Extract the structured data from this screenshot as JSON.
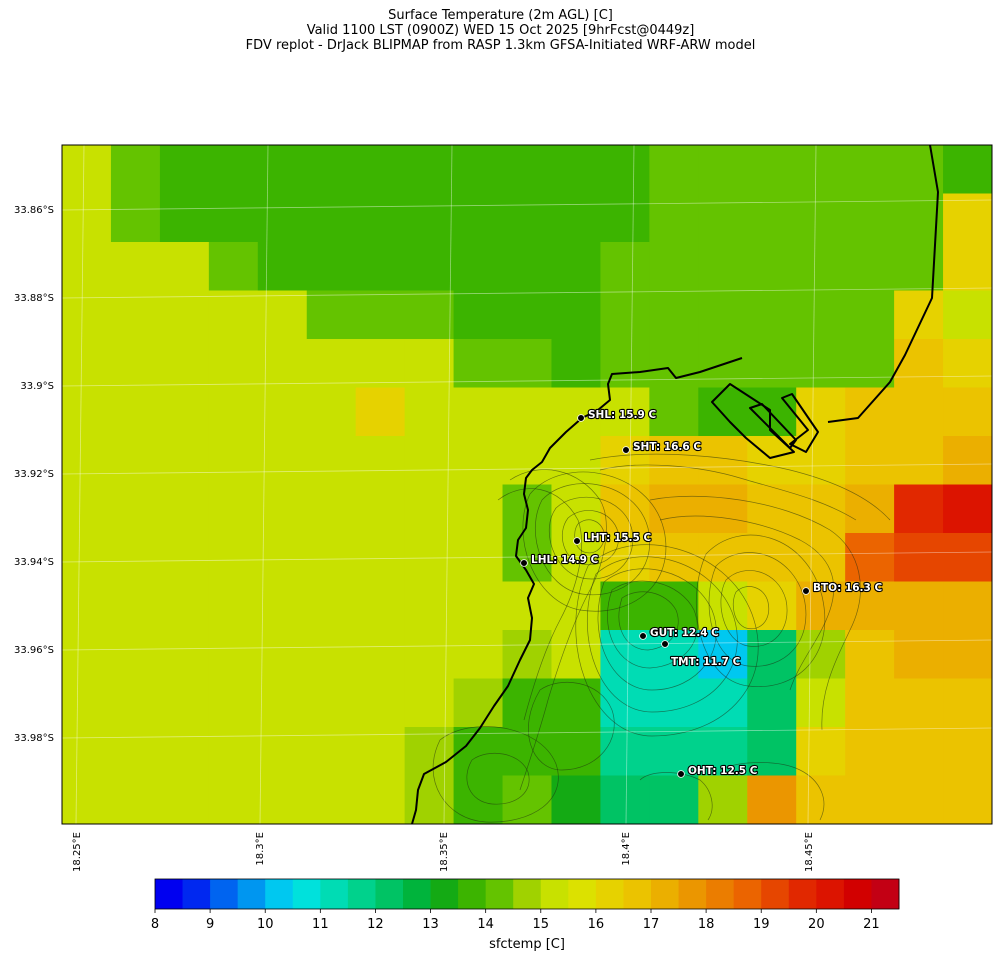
{
  "title": {
    "line1": "Surface Temperature (2m AGL) [C]",
    "line2": "Valid 1100 LST (0900Z) WED 15 Oct 2025 [9hrFcst@0449z]",
    "line3": "FDV replot - DrJack BLIPMAP from RASP 1.3km GFSA-Initiated WRF-ARW model"
  },
  "latitude_labels": [
    "33.86°S",
    "33.88°S",
    "33.9°S",
    "33.92°S",
    "33.94°S",
    "33.96°S",
    "33.98°S"
  ],
  "longitude_labels": [
    "18.25°E",
    "18.3°E",
    "18.35°E",
    "18.4°E",
    "18.45°E"
  ],
  "stations": [
    {
      "id": "SHL",
      "label": "SHL: 15.9 C",
      "temp_c": 15.9
    },
    {
      "id": "SHT",
      "label": "SHT: 16.6 C",
      "temp_c": 16.6
    },
    {
      "id": "LHT",
      "label": "LHT: 15.5 C",
      "temp_c": 15.5
    },
    {
      "id": "LHL",
      "label": "LHL: 14.9 C",
      "temp_c": 14.9
    },
    {
      "id": "BTO",
      "label": "BTO: 16.3 C",
      "temp_c": 16.3
    },
    {
      "id": "GUT",
      "label": "GUT: 12.4 C",
      "temp_c": 12.4
    },
    {
      "id": "TMT",
      "label": "TMT: 11.7 C",
      "temp_c": 11.7
    },
    {
      "id": "OHT",
      "label": "OHT: 12.5 C",
      "temp_c": 12.5
    }
  ],
  "colorbar": {
    "title": "sfctemp [C]",
    "min": 8,
    "max": 21.5,
    "step": 0.5,
    "tick_labels": [
      "8",
      "9",
      "10",
      "11",
      "12",
      "13",
      "14",
      "15",
      "16",
      "17",
      "18",
      "19",
      "20",
      "21"
    ],
    "colors": [
      "#0000f0",
      "#0028f0",
      "#0064f0",
      "#0096f0",
      "#00c8f0",
      "#00e1dc",
      "#00dcb4",
      "#00d28c",
      "#00c364",
      "#00b43c",
      "#14aa14",
      "#3cb400",
      "#64c300",
      "#a0d200",
      "#c8e100",
      "#dce100",
      "#e6d200",
      "#ebc300",
      "#ebaf00",
      "#eb9600",
      "#eb7d00",
      "#eb6400",
      "#e64600",
      "#e12800",
      "#dc1400",
      "#d20000",
      "#c30014"
    ]
  },
  "chart_data": {
    "type": "heatmap",
    "title": "Surface Temperature (2m AGL) [C]",
    "variable": "sfctemp [C]",
    "lon_range": [
      18.247,
      18.497
    ],
    "lat_range": [
      -33.998,
      -33.845
    ],
    "grid_values_c": [
      [
        15.4,
        14.2,
        13.6,
        13.6,
        13.6,
        13.6,
        13.6,
        13.6,
        13.6,
        13.6,
        13.6,
        13.6,
        14.2,
        14.2,
        14.2,
        14.2,
        14.2,
        14.2,
        13.6
      ],
      [
        15.4,
        14.2,
        13.6,
        13.6,
        13.6,
        13.6,
        13.6,
        13.6,
        13.6,
        13.6,
        13.6,
        13.6,
        14.2,
        14.2,
        14.2,
        14.2,
        14.2,
        14.2,
        16.2
      ],
      [
        15.4,
        15.4,
        15.4,
        14.2,
        13.6,
        13.6,
        13.6,
        13.6,
        13.6,
        13.6,
        13.6,
        14.2,
        14.2,
        14.2,
        14.2,
        14.2,
        14.2,
        14.2,
        16.2
      ],
      [
        15.4,
        15.4,
        15.4,
        15.4,
        15.4,
        14.2,
        14.2,
        14.2,
        13.6,
        13.6,
        13.6,
        14.2,
        14.2,
        14.2,
        14.2,
        14.2,
        14.2,
        16.2,
        15.4
      ],
      [
        15.4,
        15.4,
        15.4,
        15.4,
        15.4,
        15.4,
        15.4,
        15.4,
        14.2,
        14.2,
        13.6,
        14.2,
        14.2,
        14.2,
        14.2,
        14.2,
        14.2,
        16.8,
        16.2
      ],
      [
        15.4,
        15.4,
        15.4,
        15.4,
        15.4,
        15.4,
        16.2,
        15.4,
        15.4,
        15.4,
        15.4,
        15.4,
        14.2,
        13.6,
        13.6,
        16.2,
        16.8,
        16.8,
        16.8
      ],
      [
        15.4,
        15.4,
        15.4,
        15.4,
        15.4,
        15.4,
        15.4,
        15.4,
        15.4,
        15.4,
        15.4,
        16.2,
        16.8,
        16.8,
        16.2,
        16.2,
        16.8,
        16.8,
        17.4
      ],
      [
        15.4,
        15.4,
        15.4,
        15.4,
        15.4,
        15.4,
        15.4,
        15.4,
        15.4,
        14.2,
        15.4,
        16.8,
        17.4,
        17.4,
        16.8,
        16.8,
        17.4,
        19.6,
        20.4
      ],
      [
        15.4,
        15.4,
        15.4,
        15.4,
        15.4,
        15.4,
        15.4,
        15.4,
        15.4,
        14.2,
        15.4,
        16.2,
        16.8,
        16.8,
        16.8,
        16.8,
        18.8,
        19.2,
        19.2
      ],
      [
        15.4,
        15.4,
        15.4,
        15.4,
        15.4,
        15.4,
        15.4,
        15.4,
        15.4,
        15.4,
        15.4,
        13.6,
        13.6,
        15.4,
        16.2,
        17.4,
        17.4,
        17.4,
        17.4
      ],
      [
        15.4,
        15.4,
        15.4,
        15.4,
        15.4,
        15.4,
        15.4,
        15.4,
        15.4,
        14.6,
        15.4,
        11.2,
        11.2,
        10.2,
        12.2,
        14.6,
        16.8,
        17.4,
        17.4
      ],
      [
        15.4,
        15.4,
        15.4,
        15.4,
        15.4,
        15.4,
        15.4,
        15.4,
        14.6,
        13.6,
        13.6,
        11.2,
        11.2,
        11.2,
        12.2,
        15.4,
        16.8,
        16.8,
        16.8
      ],
      [
        15.4,
        15.4,
        15.4,
        15.4,
        15.4,
        15.4,
        15.4,
        14.6,
        13.6,
        13.6,
        13.6,
        11.6,
        11.6,
        11.6,
        12.2,
        16.2,
        16.8,
        16.8,
        16.8
      ],
      [
        15.4,
        15.4,
        15.4,
        15.4,
        15.4,
        15.4,
        15.4,
        14.6,
        13.6,
        14.2,
        13.0,
        12.2,
        12.2,
        14.6,
        17.6,
        16.8,
        16.8,
        16.8,
        16.8
      ]
    ]
  }
}
